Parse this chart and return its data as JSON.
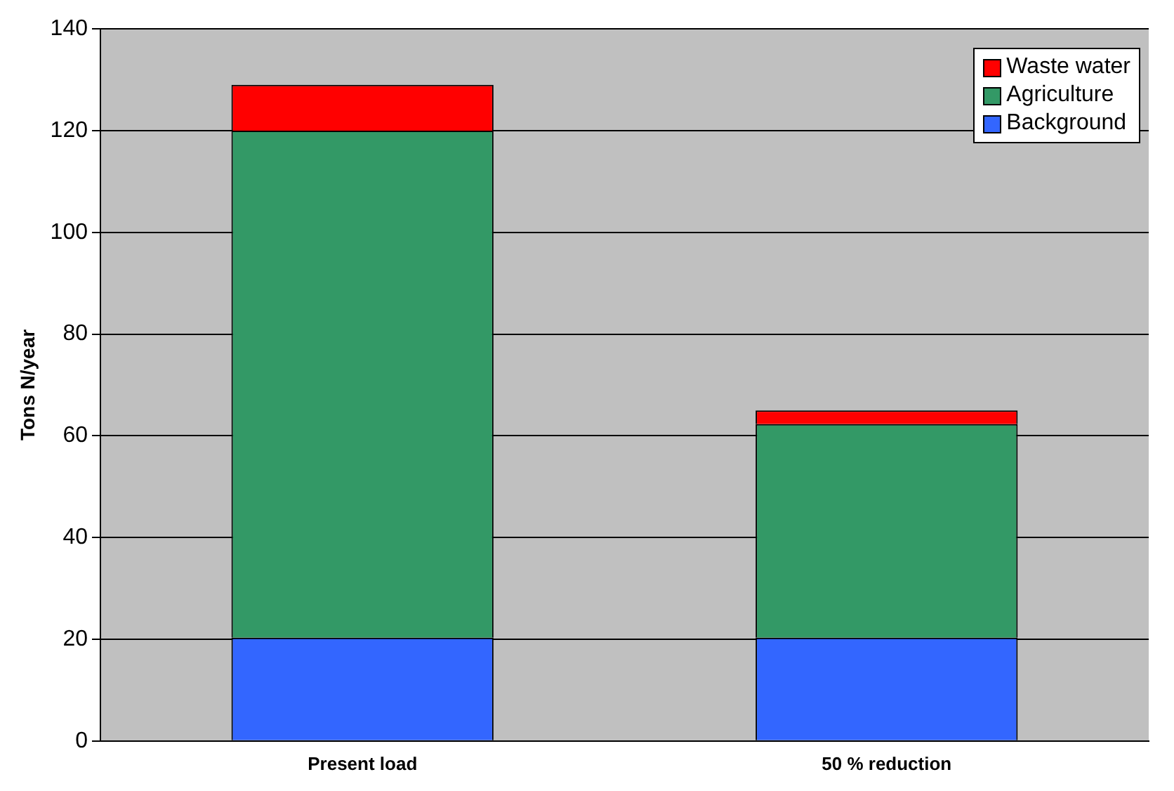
{
  "chart_data": {
    "type": "bar",
    "ylabel": "Tons N/year",
    "categories": [
      "Present load",
      "50 % reduction"
    ],
    "stacked": true,
    "series": [
      {
        "name": "Background",
        "color": "#3366ff",
        "values": [
          20.3,
          20.3
        ]
      },
      {
        "name": "Agriculture",
        "color": "#339966",
        "values": [
          99.7,
          42
        ]
      },
      {
        "name": "Waste water",
        "color": "#ff0000",
        "values": [
          9,
          2.7
        ]
      }
    ],
    "ylim": [
      0,
      140
    ],
    "yticks": [
      0,
      20,
      40,
      60,
      80,
      100,
      120,
      140
    ],
    "grid": "y",
    "legend": "top right"
  }
}
